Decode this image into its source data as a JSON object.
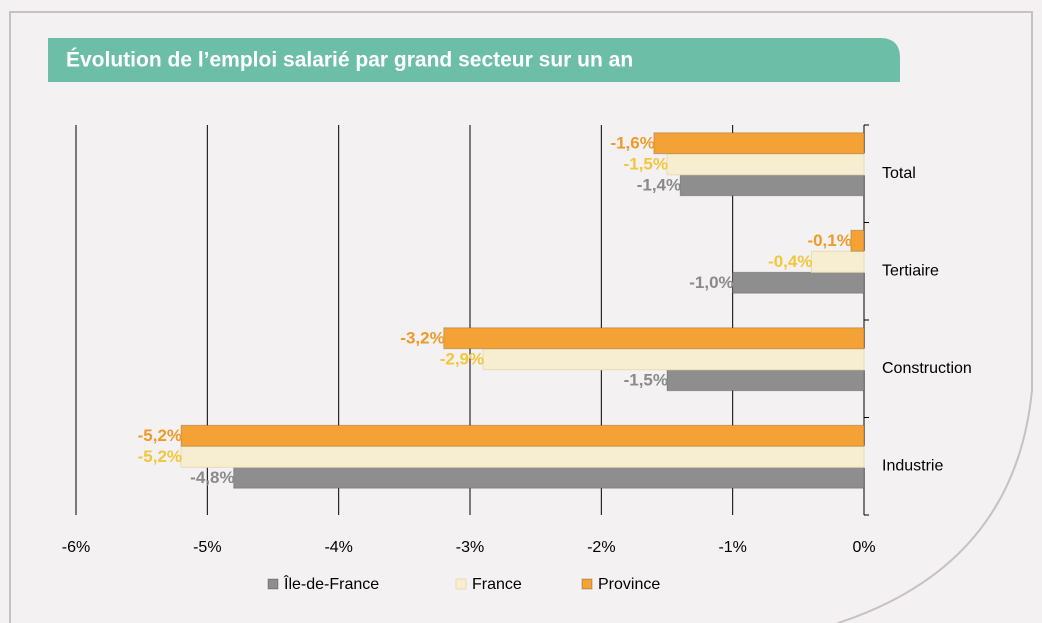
{
  "chart_data": {
    "type": "barh",
    "title": "Évolution de l’emploi salarié par grand secteur sur un an",
    "categories": [
      "Total",
      "Tertiaire",
      "Construction",
      "Industrie"
    ],
    "series": [
      {
        "name": "Île-de-France",
        "color": "#8e8e8e",
        "label_color": "#8a8a8a",
        "values": [
          -1.4,
          -1.0,
          -1.5,
          -4.8
        ],
        "value_labels": [
          "-1,4%",
          "-1,0%",
          "-1,5%",
          "-4,8%"
        ]
      },
      {
        "name": "France",
        "color": "#f7eed2",
        "label_color": "#f3c63c",
        "values": [
          -1.5,
          -0.4,
          -2.9,
          -5.2
        ],
        "value_labels": [
          "-1,5%",
          "-0,4%",
          "-2,9%",
          "-5,2%"
        ]
      },
      {
        "name": "Province",
        "color": "#f4a236",
        "label_color": "#ef9a2a",
        "values": [
          -1.6,
          -0.1,
          -3.2,
          -5.2
        ],
        "value_labels": [
          "-1,6%",
          "-0,1%",
          "-3,2%",
          "-5,2%"
        ]
      }
    ],
    "xlim": [
      -6,
      0
    ],
    "xticks": [
      {
        "value": -6,
        "label": "-6%"
      },
      {
        "value": -5,
        "label": "-5%"
      },
      {
        "value": -4,
        "label": "-4%"
      },
      {
        "value": -3,
        "label": "-3%"
      },
      {
        "value": -2,
        "label": "-2%"
      },
      {
        "value": -1,
        "label": "-1%"
      },
      {
        "value": 0,
        "label": "0%"
      }
    ],
    "grid": true,
    "legend": "bottom"
  }
}
